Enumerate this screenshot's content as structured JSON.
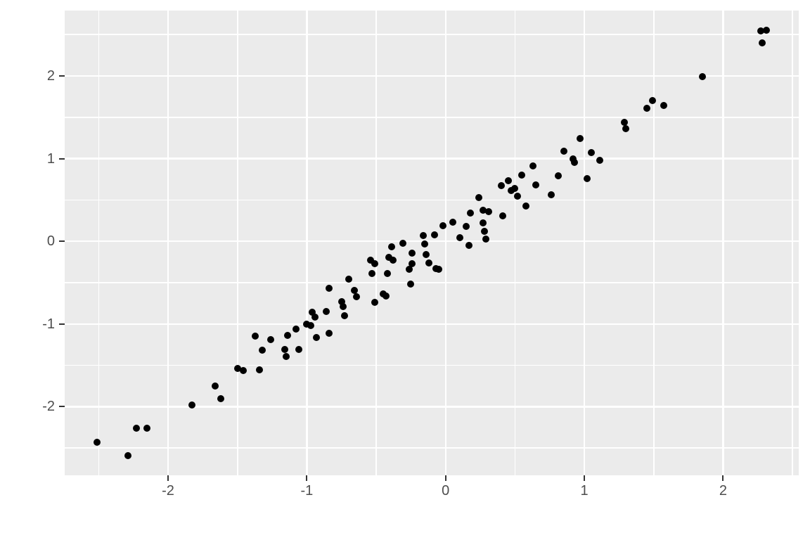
{
  "figure": {
    "background": "#ffffff",
    "panel_background": "#EBEBEB",
    "grid_color": "#FFFFFF",
    "point_color": "#000000",
    "axis_text_color": "#4D4D4D",
    "tick_mark_color": "#333333"
  },
  "chart_data": {
    "type": "scatter",
    "title": "",
    "xlabel": "",
    "ylabel": "",
    "legend_position": "none",
    "grid": true,
    "xlim": [
      -2.745,
      2.545
    ],
    "ylim": [
      -2.83,
      2.79
    ],
    "x_major_ticks": [
      -2,
      -1,
      0,
      1,
      2
    ],
    "y_major_ticks": [
      -2,
      -1,
      0,
      1,
      2
    ],
    "x_tick_labels": [
      "-2",
      "-1",
      "0",
      "1",
      "2"
    ],
    "y_tick_labels": [
      "-2",
      "-1",
      "0",
      "1",
      "2"
    ],
    "x_minor_ticks": [
      -2.5,
      -1.5,
      -0.5,
      0.5,
      1.5,
      2.5
    ],
    "y_minor_ticks": [
      -2.5,
      -1.5,
      -0.5,
      0.5,
      1.5,
      2.5
    ],
    "points": [
      [
        -2.51,
        -2.43
      ],
      [
        -2.29,
        -2.59
      ],
      [
        -2.23,
        -2.26
      ],
      [
        -2.15,
        -2.26
      ],
      [
        -1.83,
        -1.98
      ],
      [
        -1.66,
        -1.75
      ],
      [
        -1.62,
        -1.9
      ],
      [
        -1.5,
        -1.54
      ],
      [
        -1.46,
        -1.56
      ],
      [
        -1.34,
        -1.55
      ],
      [
        -1.37,
        -1.15
      ],
      [
        -1.32,
        -1.32
      ],
      [
        -1.26,
        -1.19
      ],
      [
        -1.14,
        -1.14
      ],
      [
        -1.16,
        -1.31
      ],
      [
        -1.15,
        -1.39
      ],
      [
        -1.08,
        -1.06
      ],
      [
        -1.06,
        -1.31
      ],
      [
        -1.0,
        -1.0
      ],
      [
        -0.97,
        -1.02
      ],
      [
        -0.96,
        -0.86
      ],
      [
        -0.94,
        -0.92
      ],
      [
        -0.93,
        -1.16
      ],
      [
        -0.86,
        -0.85
      ],
      [
        -0.84,
        -1.11
      ],
      [
        -0.84,
        -0.57
      ],
      [
        -0.75,
        -0.73
      ],
      [
        -0.74,
        -0.79
      ],
      [
        -0.73,
        -0.9
      ],
      [
        -0.7,
        -0.46
      ],
      [
        -0.66,
        -0.59
      ],
      [
        -0.64,
        -0.67
      ],
      [
        -0.51,
        -0.74
      ],
      [
        -0.45,
        -0.64
      ],
      [
        -0.43,
        -0.66
      ],
      [
        -0.54,
        -0.23
      ],
      [
        -0.51,
        -0.27
      ],
      [
        -0.53,
        -0.39
      ],
      [
        -0.42,
        -0.39
      ],
      [
        -0.41,
        -0.19
      ],
      [
        -0.38,
        -0.23
      ],
      [
        -0.39,
        -0.07
      ],
      [
        -0.31,
        -0.02
      ],
      [
        -0.25,
        -0.52
      ],
      [
        -0.26,
        -0.34
      ],
      [
        -0.24,
        -0.27
      ],
      [
        -0.24,
        -0.14
      ],
      [
        -0.14,
        -0.16
      ],
      [
        -0.12,
        -0.26
      ],
      [
        -0.07,
        -0.33
      ],
      [
        -0.05,
        -0.34
      ],
      [
        -0.16,
        0.07
      ],
      [
        -0.15,
        -0.03
      ],
      [
        -0.08,
        0.08
      ],
      [
        -0.02,
        0.19
      ],
      [
        0.05,
        0.23
      ],
      [
        0.1,
        0.04
      ],
      [
        0.15,
        0.18
      ],
      [
        0.17,
        -0.05
      ],
      [
        0.18,
        0.34
      ],
      [
        0.24,
        0.53
      ],
      [
        0.27,
        0.38
      ],
      [
        0.27,
        0.22
      ],
      [
        0.28,
        0.12
      ],
      [
        0.29,
        0.03
      ],
      [
        0.31,
        0.36
      ],
      [
        0.4,
        0.67
      ],
      [
        0.41,
        0.31
      ],
      [
        0.45,
        0.73
      ],
      [
        0.47,
        0.61
      ],
      [
        0.5,
        0.64
      ],
      [
        0.52,
        0.55
      ],
      [
        0.55,
        0.8
      ],
      [
        0.58,
        0.43
      ],
      [
        0.63,
        0.91
      ],
      [
        0.65,
        0.68
      ],
      [
        0.76,
        0.56
      ],
      [
        0.81,
        0.79
      ],
      [
        0.85,
        1.09
      ],
      [
        0.92,
        1.0
      ],
      [
        0.93,
        0.95
      ],
      [
        0.97,
        1.24
      ],
      [
        1.02,
        0.76
      ],
      [
        1.05,
        1.07
      ],
      [
        1.11,
        0.98
      ],
      [
        1.29,
        1.44
      ],
      [
        1.3,
        1.36
      ],
      [
        1.45,
        1.61
      ],
      [
        1.49,
        1.7
      ],
      [
        1.57,
        1.64
      ],
      [
        1.85,
        1.99
      ],
      [
        2.27,
        2.54
      ],
      [
        2.31,
        2.55
      ],
      [
        2.28,
        2.4
      ]
    ]
  }
}
